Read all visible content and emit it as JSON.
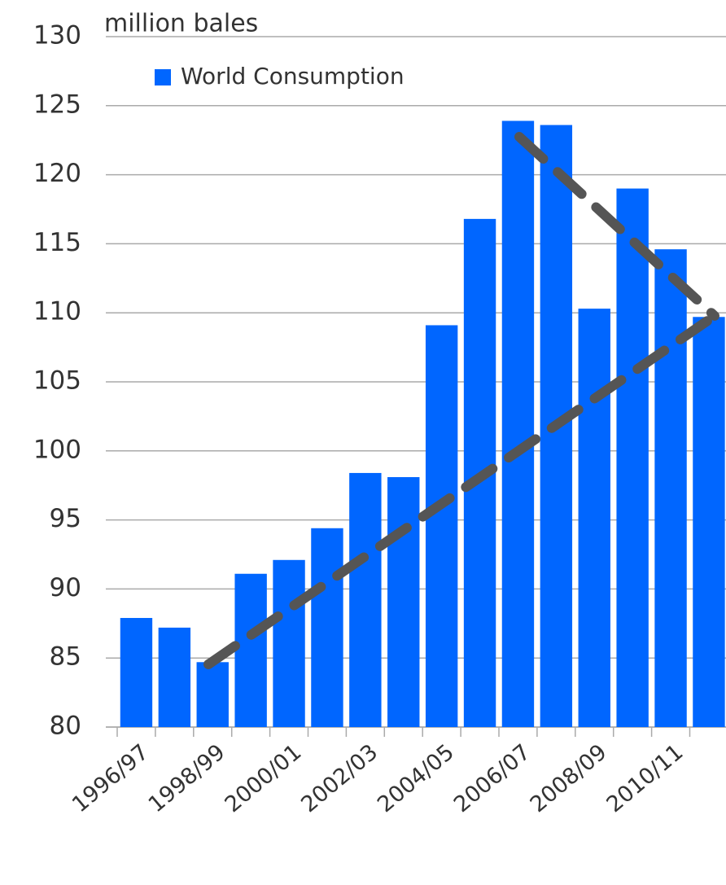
{
  "chart_data": {
    "type": "bar",
    "y_label": "million bales",
    "categories": [
      "1996/97",
      null,
      "1998/99",
      null,
      "2000/01",
      null,
      "2002/03",
      null,
      "2004/05",
      null,
      "2006/07",
      null,
      "2008/09",
      null,
      "2010/11",
      null
    ],
    "series": [
      {
        "name": "World Consumption",
        "color": "#0066ff",
        "values": [
          87.9,
          87.2,
          84.7,
          91.1,
          92.1,
          94.4,
          98.4,
          98.1,
          109.1,
          116.8,
          123.9,
          123.6,
          110.3,
          119.0,
          114.6,
          109.7
        ]
      }
    ],
    "ylim": [
      80,
      130
    ],
    "yticks": [
      80,
      85,
      90,
      95,
      100,
      105,
      110,
      115,
      120,
      125,
      130
    ],
    "grid": true,
    "legend": "top-left"
  }
}
